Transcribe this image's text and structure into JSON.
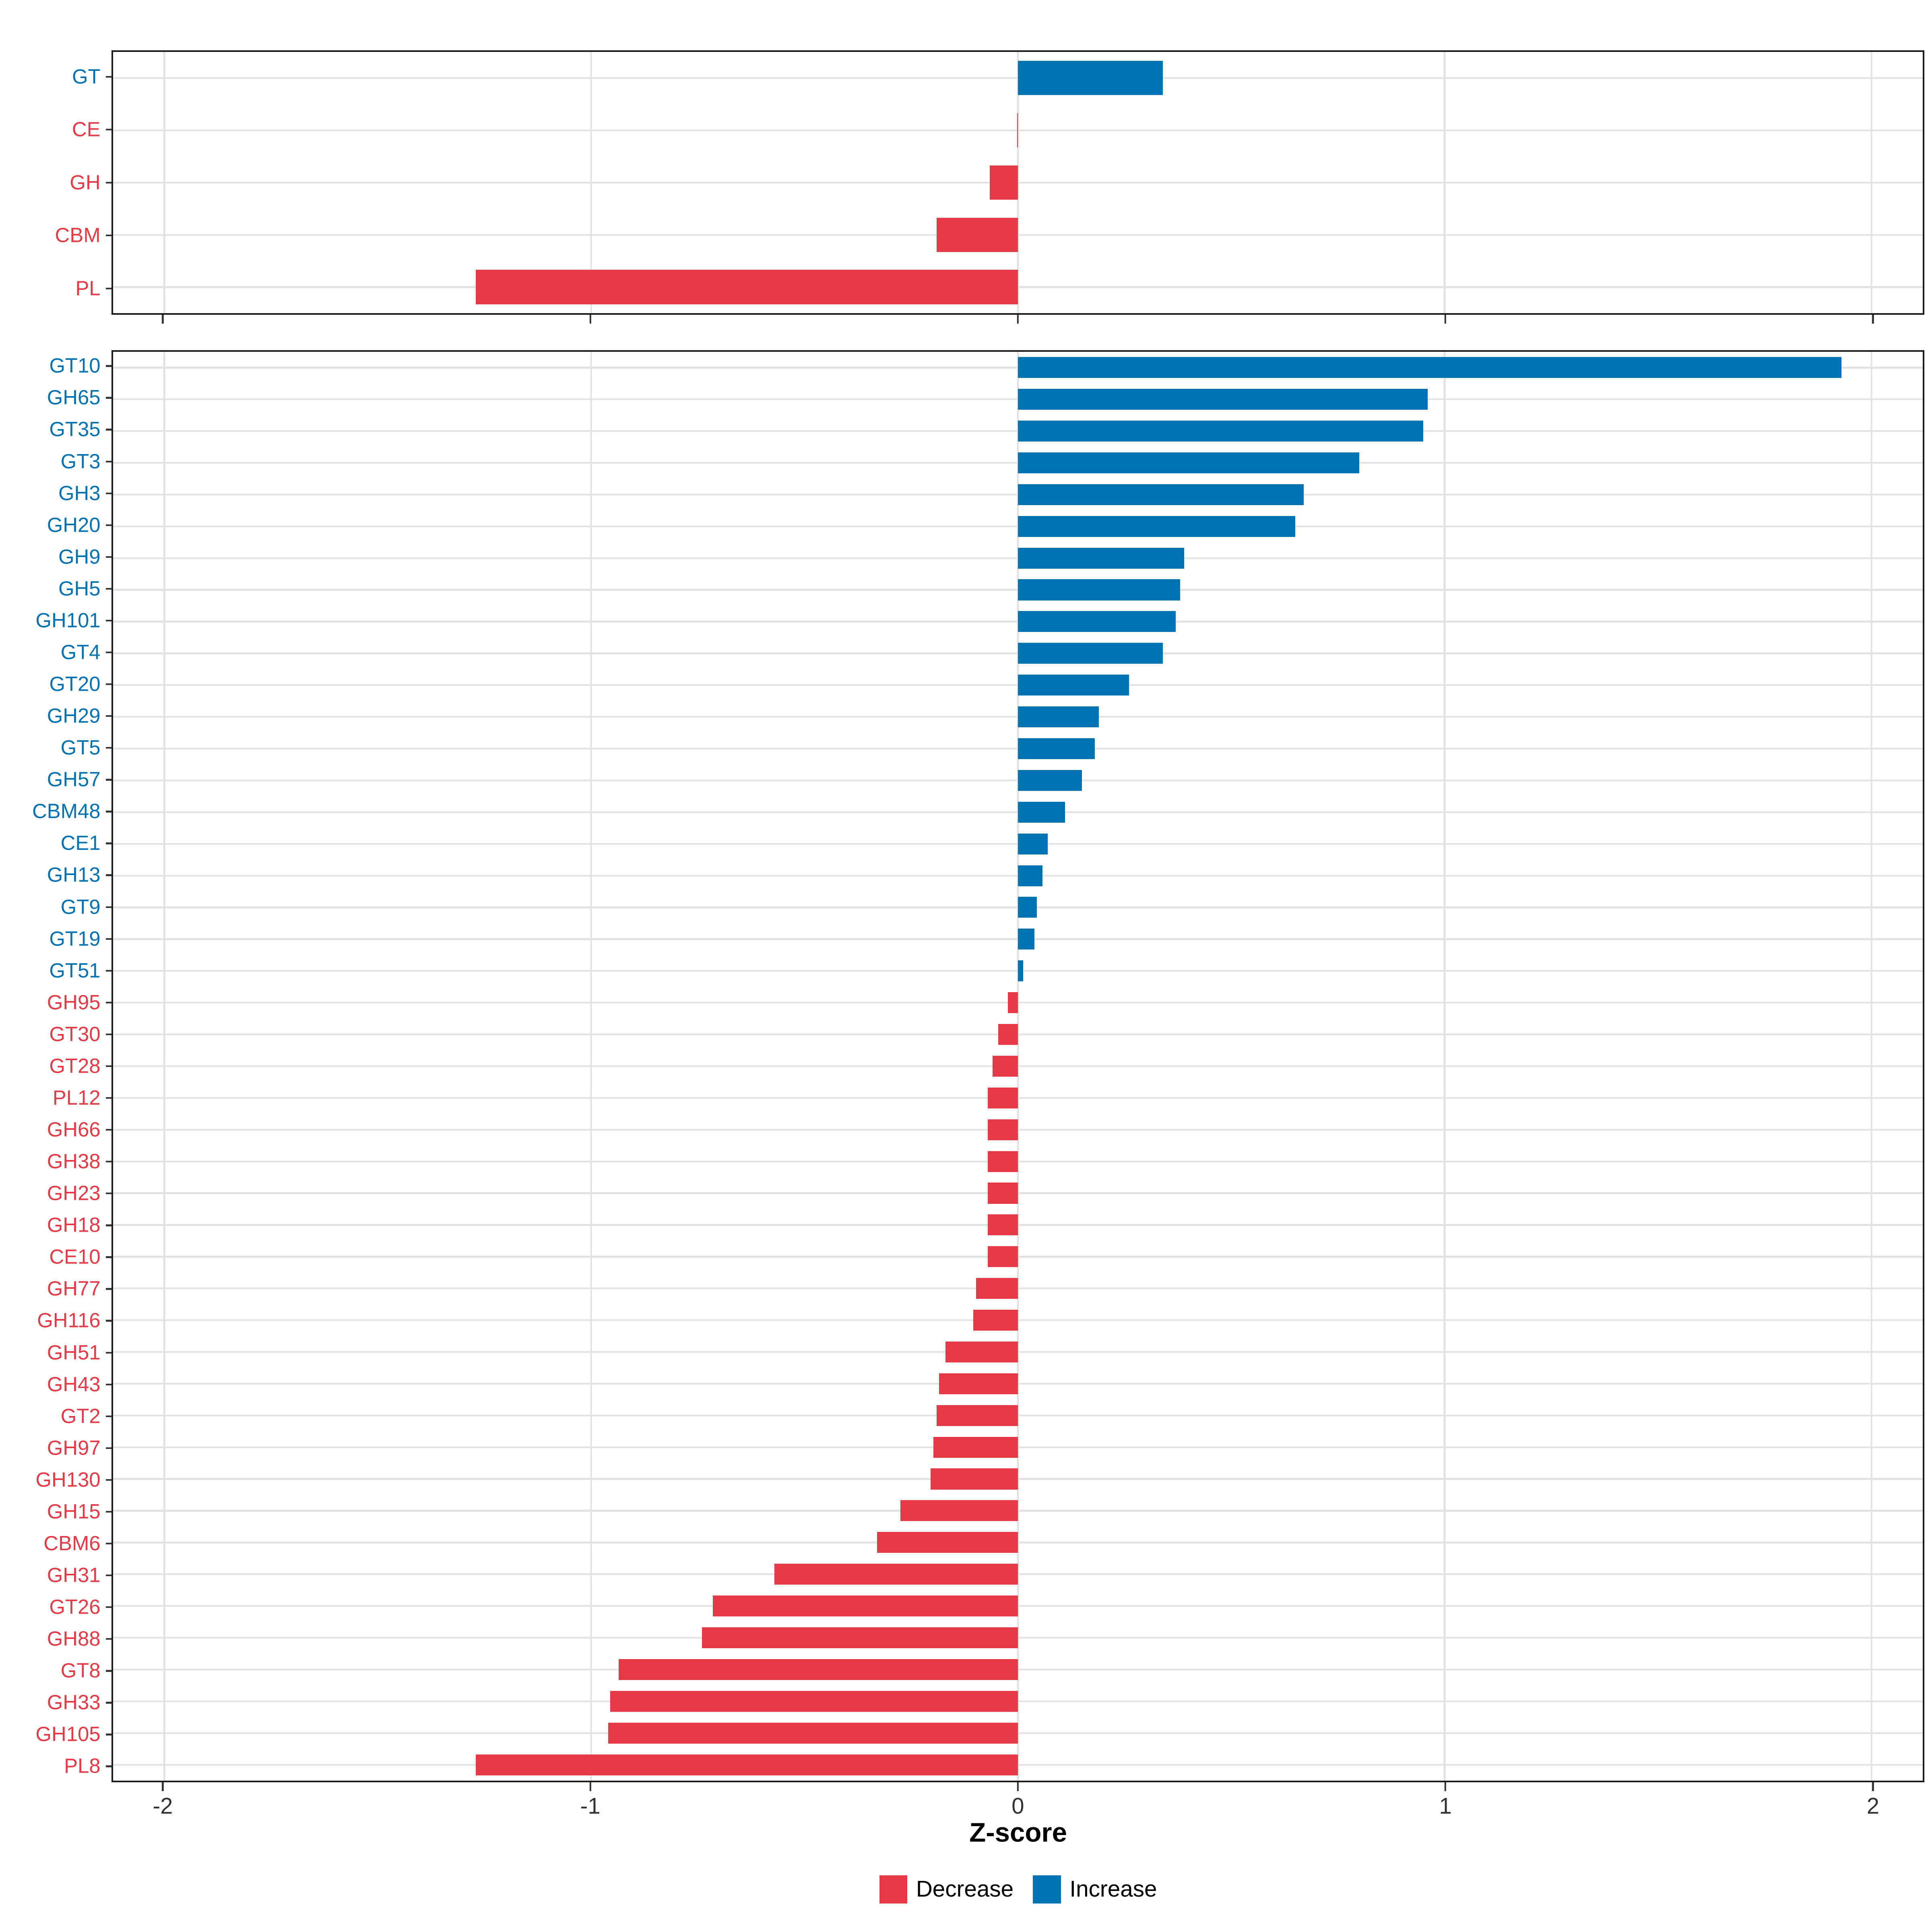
{
  "colors": {
    "increase": "#0072B2",
    "decrease": "#E63946",
    "grid": "#E2E2E2",
    "panel_border": "#1A1A1A",
    "tick": "#333333",
    "tick_label": "#333333",
    "axis_title": "#000000",
    "background": "#FFFFFF"
  },
  "axis": {
    "title": "Z-score",
    "xlim": [
      -2.12,
      2.12
    ],
    "tick_values": [
      -2,
      -1,
      0,
      1,
      2
    ],
    "tick_labels": [
      "-2",
      "-1",
      "0",
      "1",
      "2"
    ]
  },
  "legend": {
    "items": [
      {
        "label": "Decrease",
        "group": "decrease"
      },
      {
        "label": "Increase",
        "group": "increase"
      }
    ]
  },
  "chart_data": [
    {
      "type": "bar",
      "orientation": "horizontal",
      "panel": "top",
      "xlabel": "Z-score",
      "xlim": [
        -2.12,
        2.12
      ],
      "grid": true,
      "legend_position": "bottom",
      "categories": [
        "GT",
        "CE",
        "GH",
        "CBM",
        "PL"
      ],
      "values": [
        0.34,
        -0.002,
        -0.066,
        -0.19,
        -1.27
      ],
      "groups": [
        "increase",
        "decrease",
        "decrease",
        "decrease",
        "decrease"
      ]
    },
    {
      "type": "bar",
      "orientation": "horizontal",
      "panel": "bottom",
      "xlabel": "Z-score",
      "xlim": [
        -2.12,
        2.12
      ],
      "grid": true,
      "legend_position": "bottom",
      "categories": [
        "GT10",
        "GH65",
        "GT35",
        "GT3",
        "GH3",
        "GH20",
        "GH9",
        "GH5",
        "GH101",
        "GT4",
        "GT20",
        "GH29",
        "GT5",
        "GH57",
        "CBM48",
        "CE1",
        "GH13",
        "GT9",
        "GT19",
        "GT51",
        "GH95",
        "GT30",
        "GT28",
        "PL12",
        "GH66",
        "GH38",
        "GH23",
        "GH18",
        "CE10",
        "GH77",
        "GH116",
        "GH51",
        "GH43",
        "GT2",
        "GH97",
        "GH130",
        "GH15",
        "CBM6",
        "GH31",
        "GT26",
        "GH88",
        "GT8",
        "GH33",
        "GH105",
        "PL8"
      ],
      "values": [
        1.93,
        0.96,
        0.95,
        0.8,
        0.67,
        0.65,
        0.39,
        0.38,
        0.37,
        0.34,
        0.26,
        0.19,
        0.18,
        0.15,
        0.11,
        0.07,
        0.058,
        0.044,
        0.039,
        0.012,
        -0.023,
        -0.046,
        -0.059,
        -0.071,
        -0.071,
        -0.071,
        -0.071,
        -0.071,
        -0.071,
        -0.098,
        -0.105,
        -0.17,
        -0.185,
        -0.19,
        -0.198,
        -0.205,
        -0.275,
        -0.33,
        -0.57,
        -0.715,
        -0.74,
        -0.935,
        -0.955,
        -0.96,
        -1.27
      ],
      "groups": [
        "increase",
        "increase",
        "increase",
        "increase",
        "increase",
        "increase",
        "increase",
        "increase",
        "increase",
        "increase",
        "increase",
        "increase",
        "increase",
        "increase",
        "increase",
        "increase",
        "increase",
        "increase",
        "increase",
        "increase",
        "decrease",
        "decrease",
        "decrease",
        "decrease",
        "decrease",
        "decrease",
        "decrease",
        "decrease",
        "decrease",
        "decrease",
        "decrease",
        "decrease",
        "decrease",
        "decrease",
        "decrease",
        "decrease",
        "decrease",
        "decrease",
        "decrease",
        "decrease",
        "decrease",
        "decrease",
        "decrease",
        "decrease",
        "decrease"
      ]
    }
  ]
}
